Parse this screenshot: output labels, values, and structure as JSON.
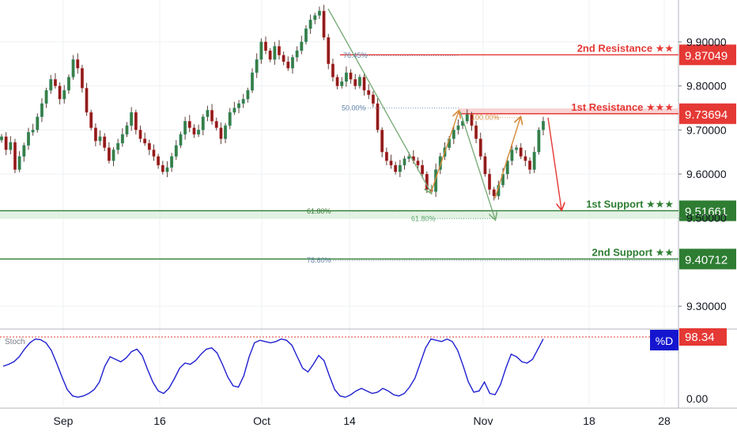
{
  "chart_data": {
    "type": "candlestick",
    "ylim": [
      9.25,
      9.995
    ],
    "y_ticks": [
      "9.90000",
      "9.80000",
      "9.70000",
      "9.60000",
      "9.50000",
      "9.30000"
    ],
    "x_ticks": [
      "Sep",
      "16",
      "Oct",
      "14",
      "Nov",
      "18",
      "28"
    ],
    "levels": [
      {
        "label": "2nd Resistance ★★",
        "value": "9.87049",
        "price": 9.87049,
        "color": "#e53935"
      },
      {
        "label": "1st Resistance ★★★",
        "value": "9.73694",
        "price": 9.73694,
        "color": "#e53935"
      },
      {
        "label": "1st Support ★★★",
        "value": "9.51661",
        "price": 9.51661,
        "color": "#2e7d32"
      },
      {
        "label": "2nd Support ★★",
        "value": "9.40712",
        "price": 9.40712,
        "color": "#2e7d32"
      }
    ],
    "fib_labels": [
      {
        "text": "76.45%",
        "price": 9.869
      },
      {
        "text": "50.00%",
        "price": 9.75
      },
      {
        "text": "100.00%",
        "price": 9.728
      },
      {
        "text": "61.80%",
        "price": 9.516
      },
      {
        "text": "61.80%",
        "price": 9.499
      },
      {
        "text": "78.60%",
        "price": 9.404
      }
    ],
    "price_series": [
      9.685,
      9.655,
      9.672,
      9.61,
      9.64,
      9.665,
      9.695,
      9.7,
      9.73,
      9.76,
      9.79,
      9.815,
      9.8,
      9.77,
      9.79,
      9.82,
      9.86,
      9.84,
      9.795,
      9.74,
      9.705,
      9.675,
      9.685,
      9.66,
      9.63,
      9.655,
      9.67,
      9.69,
      9.71,
      9.74,
      9.7,
      9.68,
      9.67,
      9.655,
      9.64,
      9.62,
      9.605,
      9.615,
      9.64,
      9.665,
      9.69,
      9.72,
      9.705,
      9.69,
      9.7,
      9.73,
      9.745,
      9.72,
      9.705,
      9.68,
      9.71,
      9.74,
      9.75,
      9.76,
      9.77,
      9.79,
      9.83,
      9.86,
      9.9,
      9.88,
      9.86,
      9.89,
      9.87,
      9.855,
      9.84,
      9.865,
      9.88,
      9.9,
      9.93,
      9.95,
      9.96,
      9.97,
      9.91,
      9.85,
      9.82,
      9.8,
      9.81,
      9.83,
      9.815,
      9.8,
      9.82,
      9.79,
      9.78,
      9.76,
      9.7,
      9.65,
      9.63,
      9.62,
      9.605,
      9.62,
      9.635,
      9.64,
      9.63,
      9.62,
      9.6,
      9.565,
      9.56,
      9.61,
      9.64,
      9.66,
      9.68,
      9.7,
      9.71,
      9.72,
      9.735,
      9.71,
      9.68,
      9.64,
      9.6,
      9.565,
      9.55,
      9.575,
      9.6,
      9.63,
      9.655,
      9.66,
      9.64,
      9.63,
      9.61,
      9.65,
      9.7,
      9.72
    ],
    "stoch": {
      "label": "Stoch",
      "d_label": "%D",
      "value_text": "98.34",
      "ticks": [
        "0.00"
      ],
      "range": [
        0,
        100
      ],
      "values": [
        55,
        58,
        62,
        70,
        82,
        92,
        98,
        97,
        92,
        80,
        60,
        38,
        18,
        8,
        6,
        8,
        12,
        18,
        30,
        55,
        70,
        66,
        62,
        68,
        78,
        82,
        72,
        50,
        30,
        16,
        12,
        20,
        35,
        52,
        60,
        58,
        64,
        74,
        82,
        84,
        76,
        58,
        38,
        24,
        22,
        40,
        70,
        92,
        96,
        94,
        92,
        94,
        98,
        96,
        88,
        70,
        52,
        46,
        58,
        72,
        64,
        40,
        18,
        8,
        6,
        10,
        16,
        20,
        16,
        12,
        14,
        20,
        16,
        10,
        8,
        12,
        22,
        36,
        60,
        84,
        98,
        96,
        94,
        98,
        94,
        80,
        56,
        30,
        14,
        16,
        30,
        12,
        10,
        26,
        52,
        74,
        70,
        62,
        60,
        66,
        82,
        98
      ]
    }
  }
}
